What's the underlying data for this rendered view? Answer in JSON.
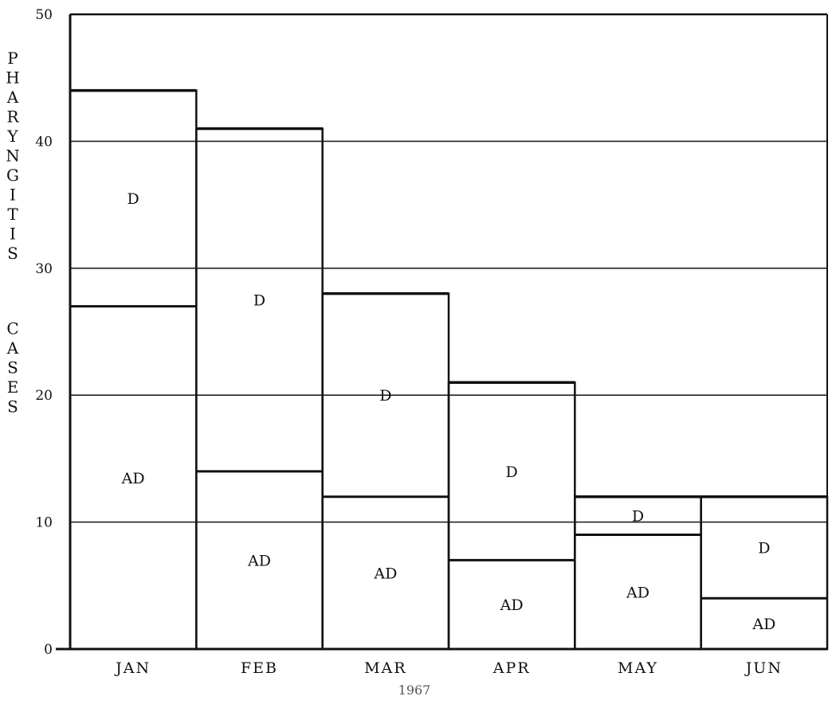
{
  "chart_data": {
    "type": "bar",
    "stacked": true,
    "categories": [
      "JAN",
      "FEB",
      "MAR",
      "APR",
      "MAY",
      "JUN"
    ],
    "series": [
      {
        "label": "AD",
        "values": [
          27,
          14,
          12,
          7,
          9,
          4
        ]
      },
      {
        "label": "D",
        "values": [
          17,
          27,
          16,
          14,
          3,
          8
        ]
      }
    ],
    "ylim": [
      0,
      50
    ],
    "yticks": [
      "0",
      "10",
      "20",
      "30",
      "40",
      "50"
    ],
    "ylabel_lines": [
      "PHARYNGITIS",
      "CASES"
    ],
    "xlabel": "1967",
    "grid": true
  }
}
